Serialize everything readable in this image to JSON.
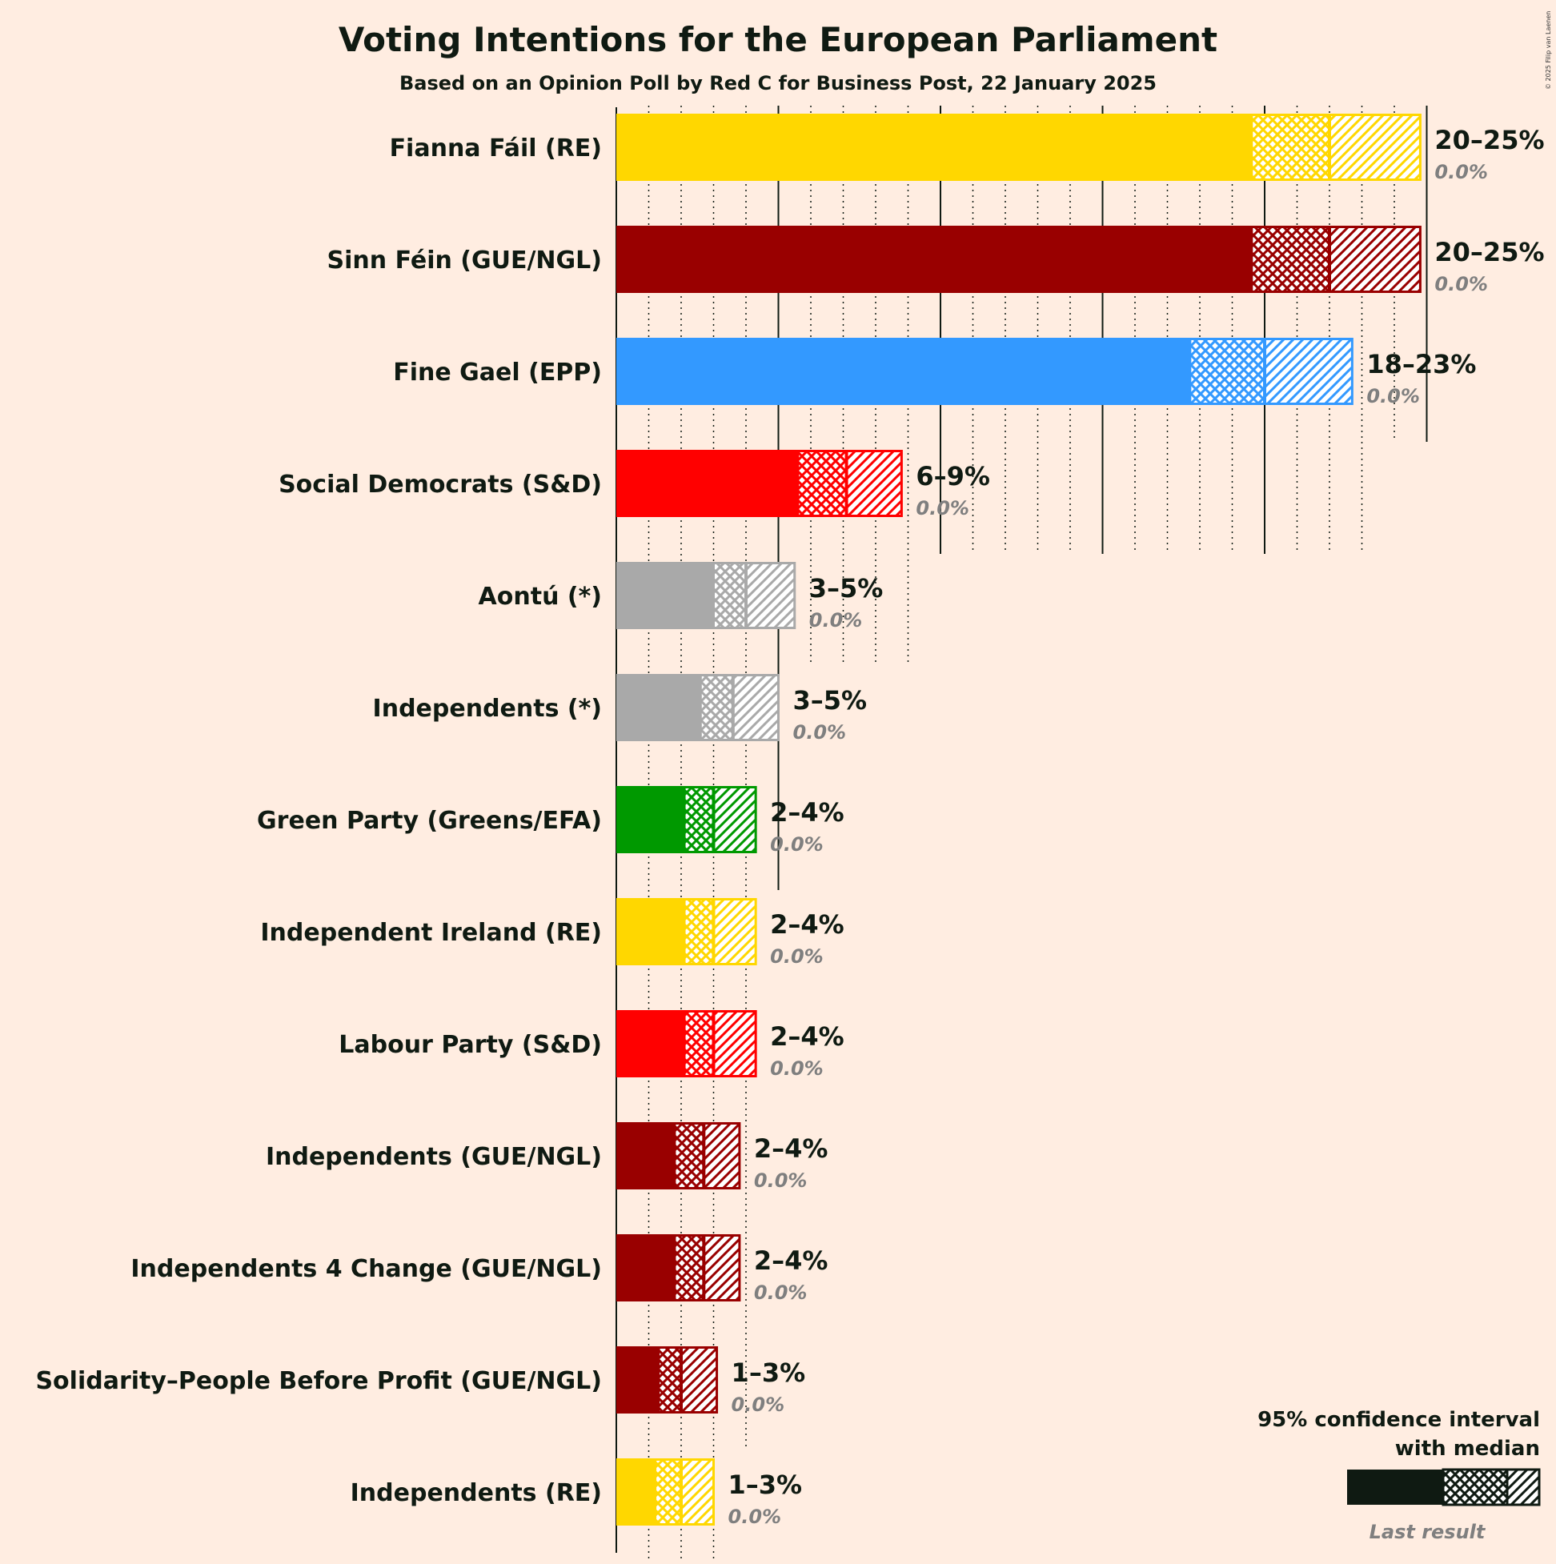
{
  "chart_data": {
    "type": "bar",
    "orientation": "horizontal",
    "title": "Voting Intentions for the European Parliament",
    "subtitle": "Based on an Opinion Poll by Red C for Business Post, 22 January 2025",
    "copyright": "© 2025 Filip van Laenen",
    "legend": {
      "title_line1": "95% confidence interval",
      "title_line2": "with median",
      "last_result": "Last result",
      "placement": "bottom-right"
    },
    "xlim": [
      0,
      25
    ],
    "grid": true,
    "parties": [
      {
        "name": "Fianna Fáil (RE)",
        "color": "#FFD700",
        "low": 19.6,
        "median": 22.0,
        "high": 24.8,
        "range_label": "20–25%",
        "last_label": "0.0%",
        "last": 0.0
      },
      {
        "name": "Sinn Féin (GUE/NGL)",
        "color": "#990000",
        "low": 19.6,
        "median": 22.0,
        "high": 24.8,
        "range_label": "20–25%",
        "last_label": "0.0%",
        "last": 0.0
      },
      {
        "name": "Fine Gael (EPP)",
        "color": "#3399FF",
        "low": 17.7,
        "median": 20.0,
        "high": 22.7,
        "range_label": "18–23%",
        "last_label": "0.0%",
        "last": 0.0
      },
      {
        "name": "Social Democrats (S&D)",
        "color": "#FF0000",
        "low": 5.6,
        "median": 7.1,
        "high": 8.8,
        "range_label": "6–9%",
        "last_label": "0.0%",
        "last": 0.0
      },
      {
        "name": "Aontú (*)",
        "color": "#A9A9A9",
        "low": 3.0,
        "median": 4.0,
        "high": 5.5,
        "range_label": "3–5%",
        "last_label": "0.0%",
        "last": 0.0
      },
      {
        "name": "Independents (*)",
        "color": "#A9A9A9",
        "low": 2.6,
        "median": 3.6,
        "high": 5.0,
        "range_label": "3–5%",
        "last_label": "0.0%",
        "last": 0.0
      },
      {
        "name": "Green Party (Greens/EFA)",
        "color": "#009900",
        "low": 2.1,
        "median": 3.0,
        "high": 4.3,
        "range_label": "2–4%",
        "last_label": "0.0%",
        "last": 0.0
      },
      {
        "name": "Independent Ireland (RE)",
        "color": "#FFD700",
        "low": 2.1,
        "median": 3.0,
        "high": 4.3,
        "range_label": "2–4%",
        "last_label": "0.0%",
        "last": 0.0
      },
      {
        "name": "Labour Party (S&D)",
        "color": "#FF0000",
        "low": 2.1,
        "median": 3.0,
        "high": 4.3,
        "range_label": "2–4%",
        "last_label": "0.0%",
        "last": 0.0
      },
      {
        "name": "Independents (GUE/NGL)",
        "color": "#990000",
        "low": 1.8,
        "median": 2.7,
        "high": 3.8,
        "range_label": "2–4%",
        "last_label": "0.0%",
        "last": 0.0
      },
      {
        "name": "Independents 4 Change (GUE/NGL)",
        "color": "#990000",
        "low": 1.8,
        "median": 2.7,
        "high": 3.8,
        "range_label": "2–4%",
        "last_label": "0.0%",
        "last": 0.0
      },
      {
        "name": "Solidarity–People Before Profit (GUE/NGL)",
        "color": "#990000",
        "low": 1.3,
        "median": 2.0,
        "high": 3.1,
        "range_label": "1–3%",
        "last_label": "0.0%",
        "last": 0.0
      },
      {
        "name": "Independents (RE)",
        "color": "#FFD700",
        "low": 1.2,
        "median": 2.0,
        "high": 3.0,
        "range_label": "1–3%",
        "last_label": "0.0%",
        "last": 0.0
      }
    ]
  }
}
